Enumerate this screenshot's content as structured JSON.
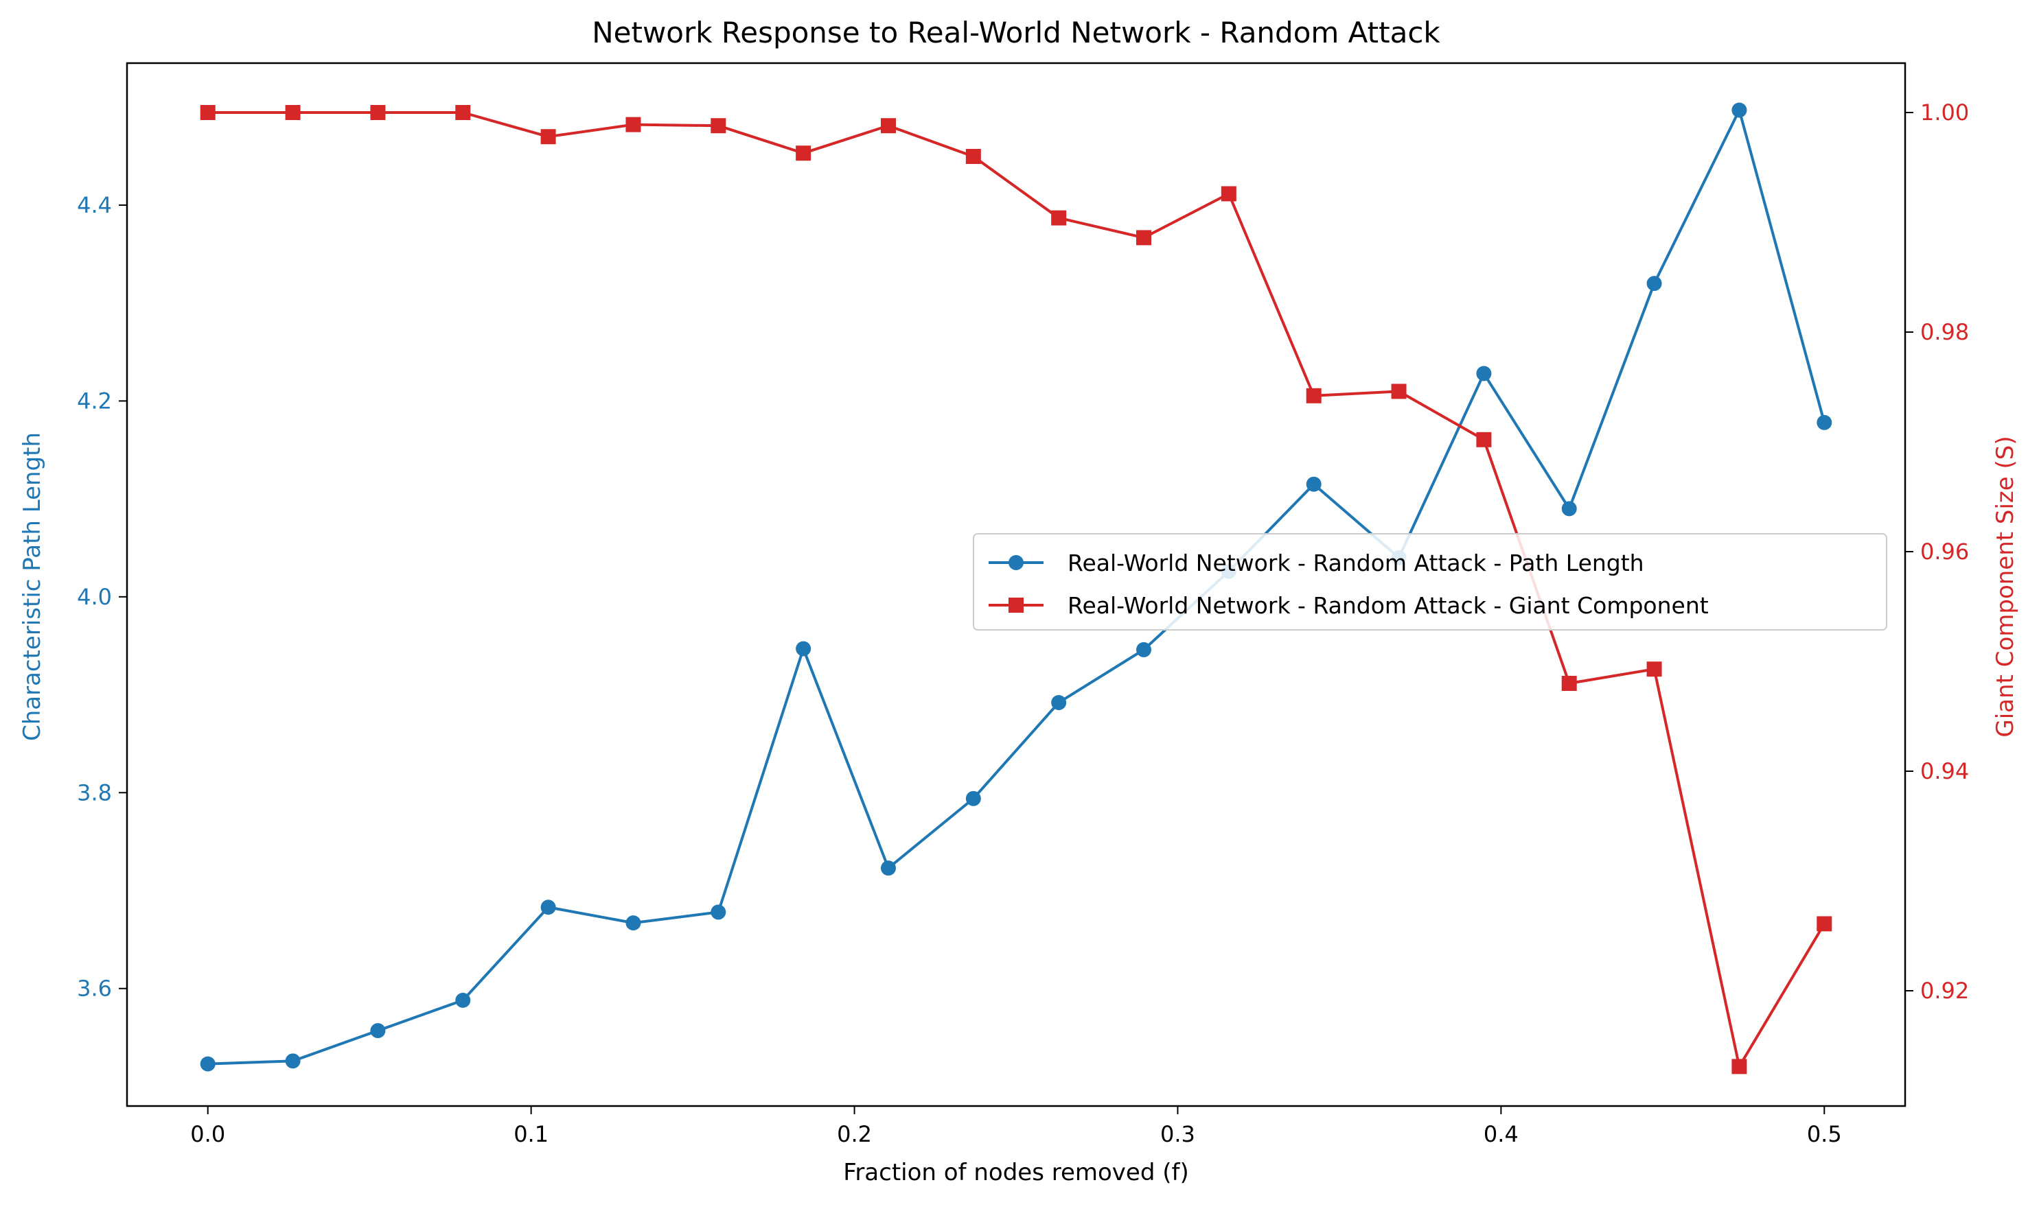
{
  "chart_data": {
    "type": "line",
    "title": "Network Response to Real-World Network - Random Attack",
    "xlabel": "Fraction of nodes removed (f)",
    "ylabel_left": "Characteristic Path Length",
    "ylabel_right": "Giant Component Size (S)",
    "xlim": [
      -0.025,
      0.525
    ],
    "ylim_left": [
      3.48,
      4.545
    ],
    "ylim_right": [
      0.9095,
      1.0045
    ],
    "x_ticks": [
      "0.0",
      "0.1",
      "0.2",
      "0.3",
      "0.4",
      "0.5"
    ],
    "y_left_ticks": [
      "3.6",
      "3.8",
      "4.0",
      "4.2",
      "4.4"
    ],
    "y_right_ticks": [
      "0.92",
      "0.94",
      "0.96",
      "0.98",
      "1.00"
    ],
    "grid": false,
    "legend_position": "center-right",
    "x": [
      0.0,
      0.0263,
      0.0526,
      0.0789,
      0.1053,
      0.1316,
      0.1579,
      0.1842,
      0.2105,
      0.2368,
      0.2632,
      0.2895,
      0.3158,
      0.3421,
      0.3684,
      0.3947,
      0.4211,
      0.4474,
      0.4737,
      0.5
    ],
    "series": [
      {
        "name": "Real-World Network - Random Attack - Path Length",
        "axis": "left",
        "color": "#1f77b4",
        "marker": "circle",
        "values": [
          3.523,
          3.526,
          3.557,
          3.588,
          3.683,
          3.667,
          3.678,
          3.947,
          3.723,
          3.794,
          3.892,
          3.946,
          4.026,
          4.115,
          4.04,
          4.228,
          4.09,
          4.32,
          4.497,
          4.178
        ]
      },
      {
        "name": "Real-World Network - Random Attack - Giant Component",
        "axis": "right",
        "color": "#d62728",
        "marker": "square",
        "values": [
          1.0,
          1.0,
          1.0,
          1.0,
          0.9978,
          0.9989,
          0.9988,
          0.9963,
          0.9988,
          0.996,
          0.9904,
          0.9886,
          0.9926,
          0.9742,
          0.9746,
          0.9702,
          0.948,
          0.9493,
          0.9131,
          0.9261
        ]
      }
    ]
  }
}
